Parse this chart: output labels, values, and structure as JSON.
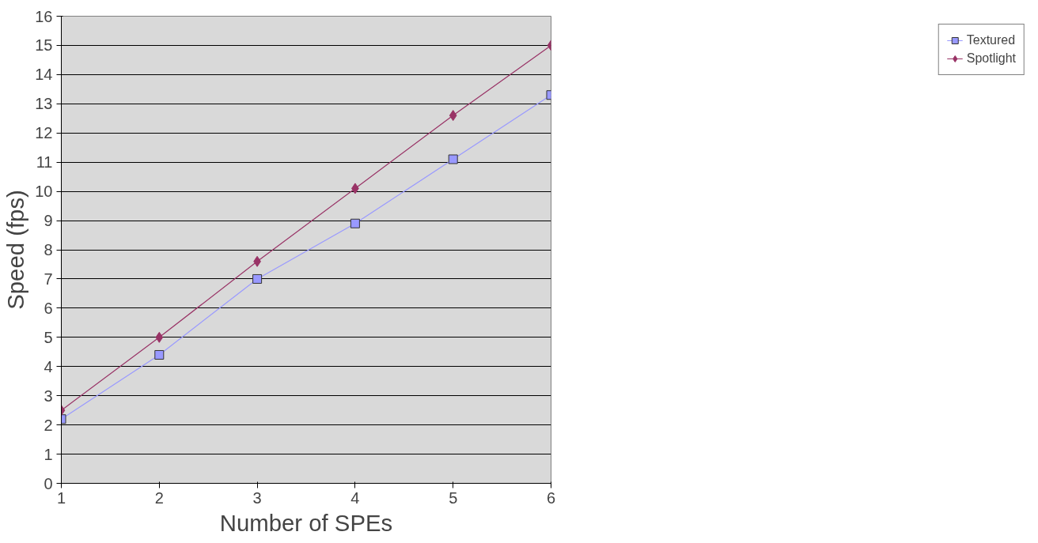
{
  "chart_data": {
    "type": "line",
    "xlabel": "Number of SPEs",
    "ylabel": "Speed (fps)",
    "x": [
      1,
      2,
      3,
      4,
      5,
      6
    ],
    "series": [
      {
        "name": "Textured",
        "color": "#9999ff",
        "marker": "square",
        "values": [
          2.2,
          4.4,
          7.0,
          8.9,
          11.1,
          13.3
        ]
      },
      {
        "name": "Spotlight",
        "color": "#993366",
        "marker": "diamond",
        "values": [
          2.5,
          5.0,
          7.6,
          10.1,
          12.6,
          15.0
        ]
      }
    ],
    "xlim": [
      1,
      6
    ],
    "xticks": [
      1,
      2,
      3,
      4,
      5,
      6
    ],
    "ylim": [
      0,
      16
    ],
    "yticks": [
      0,
      1,
      2,
      3,
      4,
      5,
      6,
      7,
      8,
      9,
      10,
      11,
      12,
      13,
      14,
      15,
      16
    ],
    "grid": "y",
    "legend": "right",
    "line_style": "solid"
  }
}
